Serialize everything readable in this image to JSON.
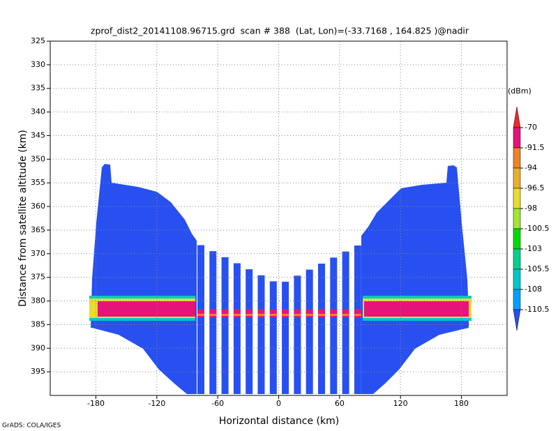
{
  "chart_data": {
    "type": "radar-profile",
    "title": "zprof_dist2_20141108.96715.grd  scan # 388  (Lat, Lon)=(-33.7168 , 164.825 )@nadir",
    "x_label": "Horizontal distance (km)",
    "y_label": "Distance from satellite altitude (km)",
    "credit": "GrADS: COLA/IGES",
    "xlim": [
      -225,
      225
    ],
    "xticks": [
      -180,
      -120,
      -60,
      0,
      60,
      120,
      180
    ],
    "ylim": [
      400,
      325
    ],
    "yticks": [
      325,
      330,
      335,
      340,
      345,
      350,
      355,
      360,
      365,
      370,
      375,
      380,
      385,
      390,
      395
    ],
    "grid": true,
    "colorbar": {
      "unit": "(dBm)",
      "levels": [
        -70,
        -91.5,
        -94,
        -96.5,
        -98,
        -100.5,
        -103,
        -105.5,
        -108,
        -110.5
      ],
      "colors": [
        "#f02828",
        "#e6147a",
        "#f08228",
        "#e6af2d",
        "#e6dc32",
        "#a0e632",
        "#00dc00",
        "#00d28c",
        "#00c8c8",
        "#00a0ff",
        "#2850f0"
      ]
    }
  }
}
